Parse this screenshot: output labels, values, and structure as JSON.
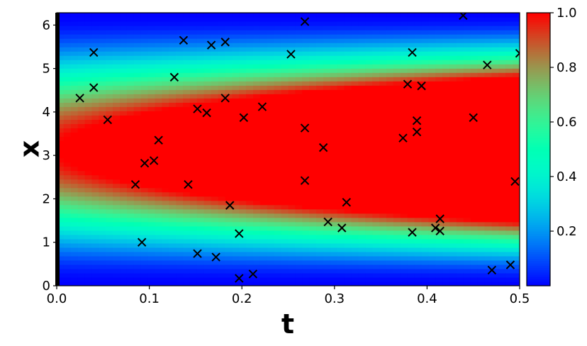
{
  "chart_data": {
    "type": "heatmap",
    "title": "",
    "xlabel": "t",
    "ylabel": "x",
    "xlim": [
      0,
      0.5
    ],
    "ylim": [
      0,
      6.283
    ],
    "xticks": [
      "0.0",
      "0.1",
      "0.2",
      "0.3",
      "0.4",
      "0.5"
    ],
    "yticks": [
      "0",
      "1",
      "2",
      "3",
      "4",
      "5",
      "6"
    ],
    "colormap": "rainbow",
    "colorbar": {
      "min": 0.0,
      "max": 1.0,
      "ticks": [
        "0.2",
        "0.4",
        "0.6",
        "0.8",
        "1.0"
      ]
    },
    "marker": "x",
    "marker_color": "#000000",
    "points": [
      {
        "t": 0.025,
        "x": 4.32
      },
      {
        "t": 0.04,
        "x": 5.37
      },
      {
        "t": 0.04,
        "x": 4.56
      },
      {
        "t": 0.055,
        "x": 3.82
      },
      {
        "t": 0.085,
        "x": 2.33
      },
      {
        "t": 0.092,
        "x": 1.0
      },
      {
        "t": 0.095,
        "x": 2.82
      },
      {
        "t": 0.105,
        "x": 2.88
      },
      {
        "t": 0.11,
        "x": 3.35
      },
      {
        "t": 0.127,
        "x": 4.8
      },
      {
        "t": 0.137,
        "x": 5.65
      },
      {
        "t": 0.142,
        "x": 2.33
      },
      {
        "t": 0.152,
        "x": 4.07
      },
      {
        "t": 0.152,
        "x": 0.74
      },
      {
        "t": 0.162,
        "x": 3.98
      },
      {
        "t": 0.167,
        "x": 5.54
      },
      {
        "t": 0.172,
        "x": 0.66
      },
      {
        "t": 0.182,
        "x": 5.61
      },
      {
        "t": 0.182,
        "x": 4.32
      },
      {
        "t": 0.187,
        "x": 1.85
      },
      {
        "t": 0.197,
        "x": 1.2
      },
      {
        "t": 0.197,
        "x": 0.17
      },
      {
        "t": 0.202,
        "x": 3.87
      },
      {
        "t": 0.212,
        "x": 0.27
      },
      {
        "t": 0.222,
        "x": 4.12
      },
      {
        "t": 0.253,
        "x": 5.33
      },
      {
        "t": 0.268,
        "x": 6.08
      },
      {
        "t": 0.268,
        "x": 3.63
      },
      {
        "t": 0.268,
        "x": 2.42
      },
      {
        "t": 0.288,
        "x": 3.18
      },
      {
        "t": 0.293,
        "x": 1.47
      },
      {
        "t": 0.308,
        "x": 1.33
      },
      {
        "t": 0.313,
        "x": 1.92
      },
      {
        "t": 0.374,
        "x": 3.4
      },
      {
        "t": 0.379,
        "x": 4.64
      },
      {
        "t": 0.384,
        "x": 5.37
      },
      {
        "t": 0.384,
        "x": 1.23
      },
      {
        "t": 0.389,
        "x": 3.8
      },
      {
        "t": 0.389,
        "x": 3.54
      },
      {
        "t": 0.394,
        "x": 4.6
      },
      {
        "t": 0.409,
        "x": 1.33
      },
      {
        "t": 0.414,
        "x": 1.54
      },
      {
        "t": 0.414,
        "x": 1.26
      },
      {
        "t": 0.439,
        "x": 6.22
      },
      {
        "t": 0.45,
        "x": 3.87
      },
      {
        "t": 0.465,
        "x": 5.08
      },
      {
        "t": 0.47,
        "x": 0.36
      },
      {
        "t": 0.49,
        "x": 0.48
      },
      {
        "t": 0.495,
        "x": 2.4
      },
      {
        "t": 0.5,
        "x": 5.35
      }
    ],
    "boundary_line": {
      "t": 0.0,
      "color": "#000000"
    }
  }
}
